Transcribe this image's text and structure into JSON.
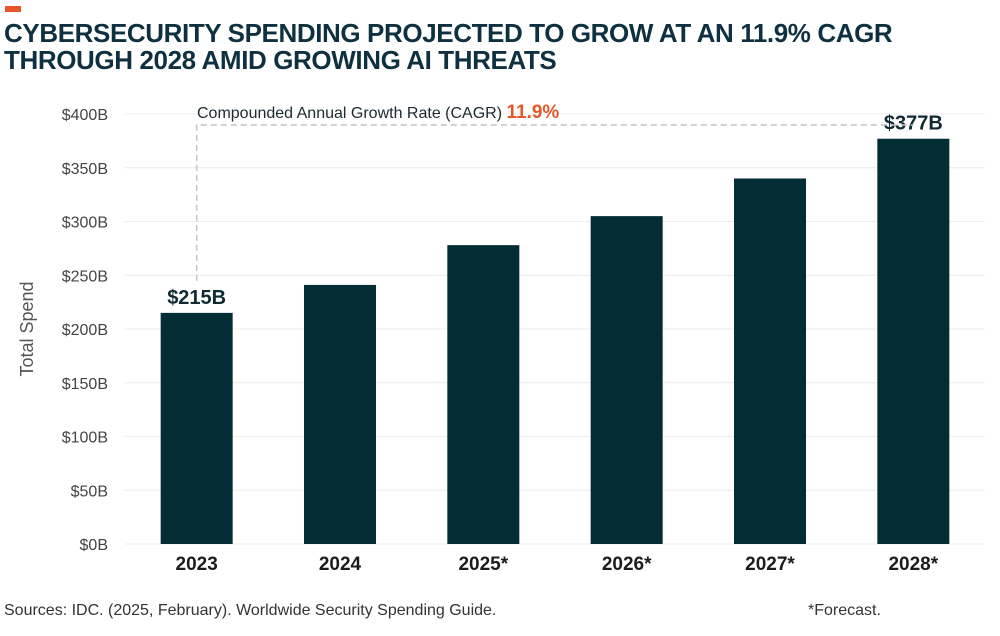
{
  "header": {
    "accent_color": "#e8572a",
    "title": "CYBERSECURITY SPENDING PROJECTED TO GROW AT AN 11.9% CAGR THROUGH 2028 AMID GROWING AI THREATS"
  },
  "chart_data": {
    "type": "bar",
    "categories": [
      "2023",
      "2024",
      "2025*",
      "2026*",
      "2027*",
      "2028*"
    ],
    "values": [
      215,
      241,
      278,
      305,
      340,
      377
    ],
    "value_labels": [
      "$215B",
      "",
      "",
      "",
      "",
      "$377B"
    ],
    "ylabel": "Total Spend",
    "ylim": [
      0,
      400
    ],
    "yticks": [
      0,
      50,
      100,
      150,
      200,
      250,
      300,
      350,
      400
    ],
    "ytick_labels": [
      "$0B",
      "$50B",
      "$100B",
      "$150B",
      "$200B",
      "$250B",
      "$300B",
      "$350B",
      "$400B"
    ],
    "grid": true,
    "bar_color": "#032c35",
    "annotation": {
      "label": "Compounded Annual Growth Rate (CAGR)",
      "value": "11.9%",
      "value_color": "#e8572a"
    }
  },
  "footer": {
    "source": "Sources: IDC. (2025, February). Worldwide Security Spending Guide.",
    "note": "*Forecast."
  }
}
